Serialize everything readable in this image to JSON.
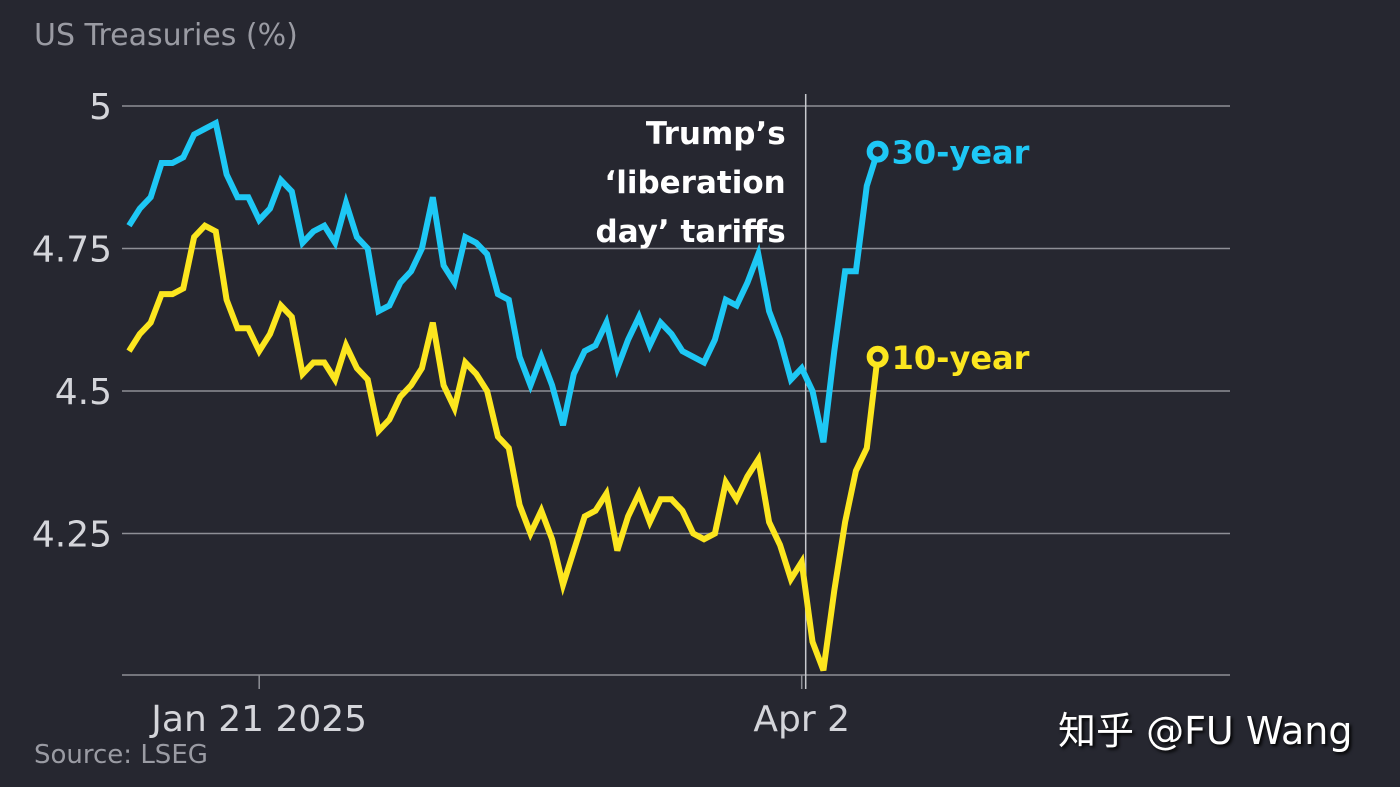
{
  "chart_data": {
    "type": "line",
    "title": "US Treasuries (%)",
    "source": "Source: LSEG",
    "xlabel": "",
    "ylabel": "%",
    "ylim": [
      4.0,
      5.0
    ],
    "yticks": [
      5,
      4.75,
      4.5,
      4.25
    ],
    "ytick_labels": [
      "5",
      "4.75",
      "4.5",
      "4.25"
    ],
    "grid": true,
    "xtick_labels": [
      {
        "label": "Jan 21 2025",
        "index": 12
      },
      {
        "label": "Apr 2",
        "index": 62
      }
    ],
    "annotation": {
      "lines": [
        "Trump’s",
        "‘liberation",
        "day’ tariffs"
      ],
      "index": 62
    },
    "series": [
      {
        "name": "30-year",
        "label": "30-year",
        "color": "#1ec8f5",
        "values": [
          4.79,
          4.82,
          4.84,
          4.9,
          4.9,
          4.91,
          4.95,
          4.96,
          4.97,
          4.88,
          4.84,
          4.84,
          4.8,
          4.82,
          4.87,
          4.85,
          4.76,
          4.78,
          4.79,
          4.76,
          4.83,
          4.77,
          4.75,
          4.64,
          4.65,
          4.69,
          4.71,
          4.75,
          4.84,
          4.72,
          4.69,
          4.77,
          4.76,
          4.74,
          4.67,
          4.66,
          4.56,
          4.51,
          4.56,
          4.51,
          4.44,
          4.53,
          4.57,
          4.58,
          4.62,
          4.54,
          4.59,
          4.63,
          4.58,
          4.62,
          4.6,
          4.57,
          4.56,
          4.55,
          4.59,
          4.66,
          4.65,
          4.69,
          4.74,
          4.64,
          4.59,
          4.52,
          4.54,
          4.5,
          4.41,
          4.57,
          4.71,
          4.71,
          4.86,
          4.92
        ]
      },
      {
        "name": "10-year",
        "label": "10-year",
        "color": "#fce61f",
        "values": [
          4.57,
          4.6,
          4.62,
          4.67,
          4.67,
          4.68,
          4.77,
          4.79,
          4.78,
          4.66,
          4.61,
          4.61,
          4.57,
          4.6,
          4.65,
          4.63,
          4.53,
          4.55,
          4.55,
          4.52,
          4.58,
          4.54,
          4.52,
          4.43,
          4.45,
          4.49,
          4.51,
          4.54,
          4.62,
          4.51,
          4.47,
          4.55,
          4.53,
          4.5,
          4.42,
          4.4,
          4.3,
          4.25,
          4.29,
          4.24,
          4.16,
          4.22,
          4.28,
          4.29,
          4.32,
          4.22,
          4.28,
          4.32,
          4.27,
          4.31,
          4.31,
          4.29,
          4.25,
          4.24,
          4.25,
          4.34,
          4.31,
          4.35,
          4.38,
          4.27,
          4.23,
          4.17,
          4.2,
          4.06,
          4.01,
          4.15,
          4.27,
          4.36,
          4.4,
          4.56
        ]
      }
    ]
  },
  "watermark": "知乎 @FU Wang"
}
